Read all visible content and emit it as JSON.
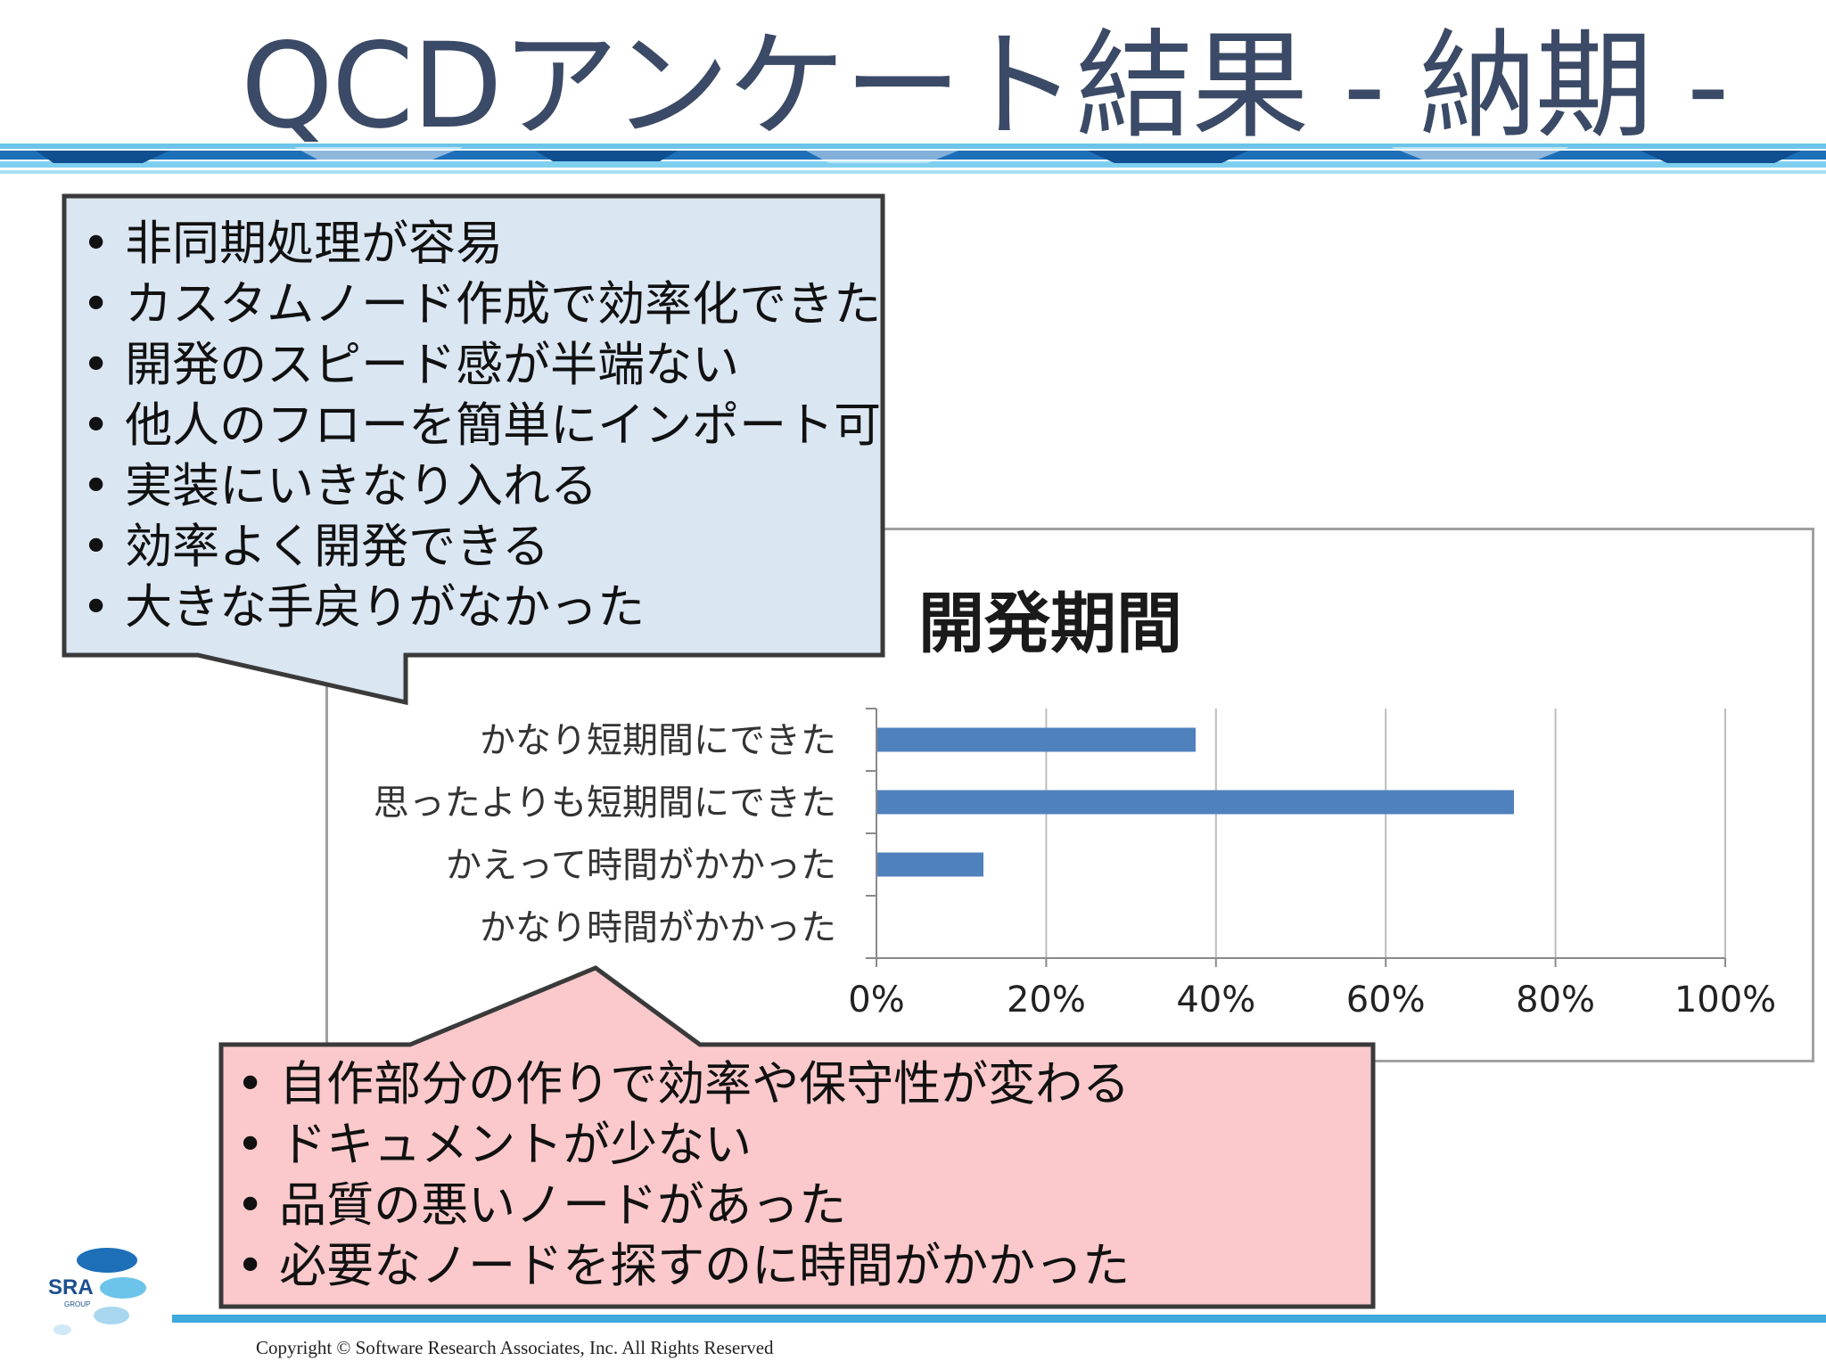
{
  "slide": {
    "title": "QCDアンケート結果 - 納期 -",
    "copyright": "Copyright © Software Research Associates,  Inc. All Rights Reserved",
    "logo_text": "SRA",
    "logo_subtext": "GROUP"
  },
  "callouts": {
    "positive": {
      "items": [
        "非同期処理が容易",
        "カスタムノード作成で効率化できた",
        "開発のスピード感が半端ない",
        "他人のフローを簡単にインポート可",
        "実装にいきなり入れる",
        "効率よく開発できる",
        "大きな手戻りがなかった"
      ],
      "fill": "#dbe6f3"
    },
    "negative": {
      "items": [
        "自作部分の作りで効率や保守性が変わる",
        "ドキュメントが少ない",
        "品質の悪いノードがあった",
        "必要なノードを探すのに時間がかかった"
      ],
      "fill": "#fbc9cb"
    }
  },
  "chart_data": {
    "type": "bar",
    "orientation": "horizontal",
    "title": "開発期間",
    "categories": [
      "かなり短期間にできた",
      "思ったよりも短期間にできた",
      "かえって時間がかかった",
      "かなり時間がかかった"
    ],
    "values": [
      37.5,
      75,
      12.5,
      0
    ],
    "xlim": [
      0,
      100
    ],
    "xticks": [
      "0%",
      "20%",
      "40%",
      "60%",
      "80%",
      "100%"
    ],
    "grid": true,
    "bar_color": "#4f81bd"
  }
}
